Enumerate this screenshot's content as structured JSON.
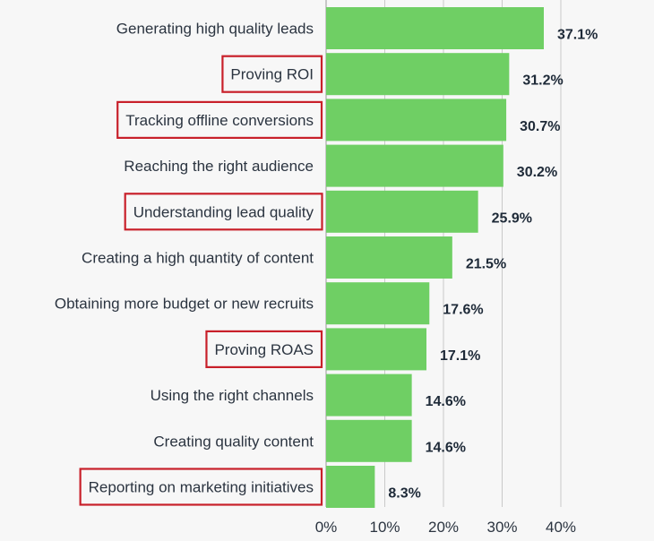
{
  "chart_data": {
    "type": "bar",
    "orientation": "horizontal",
    "categories": [
      "Generating high quality leads",
      "Proving ROI",
      "Tracking offline conversions",
      "Reaching the right audience",
      "Understanding lead quality",
      "Creating a high quantity of content",
      "Obtaining more budget or new recruits",
      "Proving ROAS",
      "Using the right channels",
      "Creating quality content",
      "Reporting on marketing initiatives"
    ],
    "values": [
      37.1,
      31.2,
      30.7,
      30.2,
      25.9,
      21.5,
      17.6,
      17.1,
      14.6,
      14.6,
      8.3
    ],
    "value_labels": [
      "37.1%",
      "31.2%",
      "30.7%",
      "30.2%",
      "25.9%",
      "21.5%",
      "17.6%",
      "17.1%",
      "14.6%",
      "14.6%",
      "8.3%"
    ],
    "highlighted": [
      false,
      true,
      true,
      false,
      true,
      false,
      false,
      true,
      false,
      false,
      true
    ],
    "xlim": [
      0,
      40
    ],
    "x_ticks": [
      0,
      10,
      20,
      30,
      40
    ],
    "x_tick_labels": [
      "0%",
      "10%",
      "20%",
      "30%",
      "40%"
    ],
    "grid": true,
    "title": "",
    "xlabel": "",
    "ylabel": "",
    "bar_color": "#6fcf64",
    "highlight_color": "#c8202a",
    "grid_color": "#c9c9c9"
  }
}
